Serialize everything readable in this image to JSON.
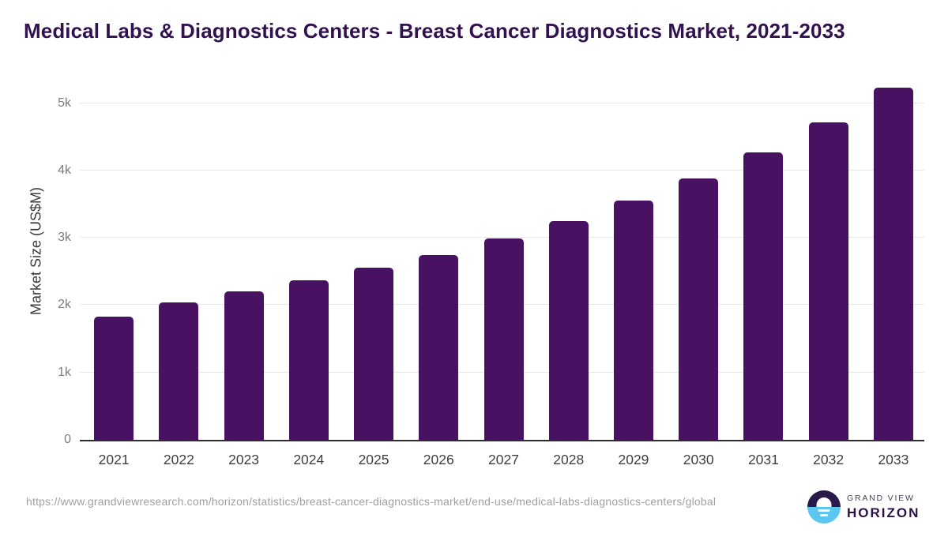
{
  "chart_data": {
    "type": "bar",
    "title": "Medical Labs & Diagnostics Centers - Breast Cancer Diagnostics Market, 2021-2033",
    "ylabel": "Market Size (US$M)",
    "xlabel": "",
    "categories": [
      "2021",
      "2022",
      "2023",
      "2024",
      "2025",
      "2026",
      "2027",
      "2028",
      "2029",
      "2030",
      "2031",
      "2032",
      "2033"
    ],
    "values": [
      1825,
      2040,
      2200,
      2365,
      2555,
      2745,
      2985,
      3245,
      3550,
      3880,
      4265,
      4720,
      5235
    ],
    "yticks": [
      {
        "label": "0",
        "value": 0
      },
      {
        "label": "1k",
        "value": 1000
      },
      {
        "label": "2k",
        "value": 2000
      },
      {
        "label": "3k",
        "value": 3000
      },
      {
        "label": "4k",
        "value": 4000
      },
      {
        "label": "5k",
        "value": 5000
      }
    ],
    "ylim": [
      0,
      5360
    ],
    "grid": "horizontal",
    "legend": "none",
    "bar_color": "#481161"
  },
  "footer": {
    "source_url": "https://www.grandviewresearch.com/horizon/statistics/breast-cancer-diagnostics-market/end-use/medical-labs-diagnostics-centers/global",
    "logo": {
      "top_text": "GRAND VIEW",
      "bottom_text": "HORIZON"
    }
  },
  "colors": {
    "bar": "#481161",
    "title": "#31114e",
    "axis_line": "#2d2d2d",
    "gridline": "#e8e8e8",
    "logo_dark": "#2a1a4a",
    "logo_blue": "#5bc7f0"
  }
}
